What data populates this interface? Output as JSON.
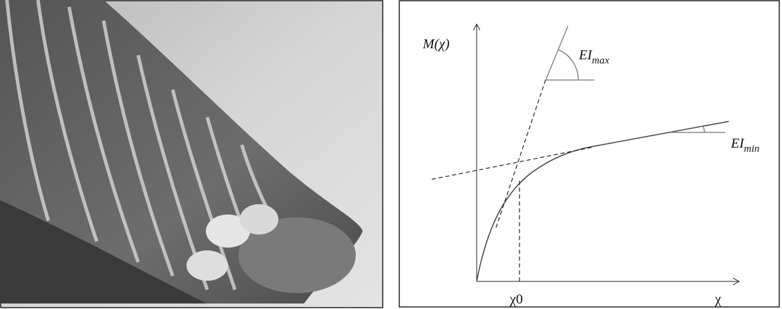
{
  "diagram": {
    "y_axis_label": "M(χ)",
    "x_axis_label": "χ",
    "marker_label": "χ0",
    "ei_max": {
      "base": "EI",
      "subscript": "max"
    },
    "ei_min": {
      "base": "EI",
      "subscript": "min"
    }
  }
}
